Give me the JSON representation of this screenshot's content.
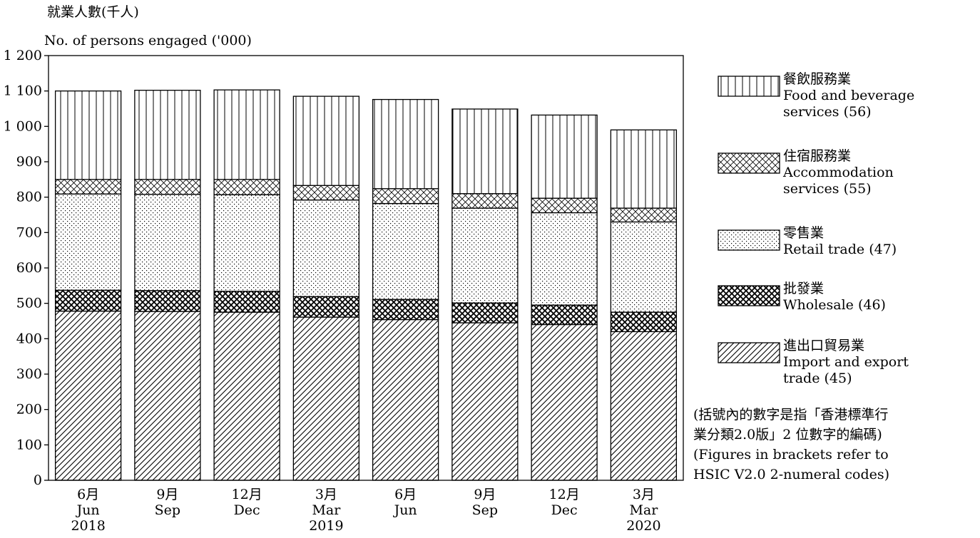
{
  "chart_data": {
    "type": "bar",
    "stacked": true,
    "ylabel_zh": "就業人數(千人)",
    "ylabel_en": "No. of persons engaged ('000)",
    "ylim": [
      0,
      1200
    ],
    "yticks": [
      0,
      100,
      200,
      300,
      400,
      500,
      600,
      700,
      800,
      900,
      1000,
      1100,
      1200
    ],
    "ytick_labels": [
      "0",
      "100",
      "200",
      "300",
      "400",
      "500",
      "600",
      "700",
      "800",
      "900",
      "1 000",
      "1 100",
      "1 200"
    ],
    "categories": [
      {
        "zh": "6月",
        "en": "Jun",
        "year": "2018"
      },
      {
        "zh": "9月",
        "en": "Sep",
        "year": ""
      },
      {
        "zh": "12月",
        "en": "Dec",
        "year": ""
      },
      {
        "zh": "3月",
        "en": "Mar",
        "year": "2019"
      },
      {
        "zh": "6月",
        "en": "Jun",
        "year": ""
      },
      {
        "zh": "9月",
        "en": "Sep",
        "year": ""
      },
      {
        "zh": "12月",
        "en": "Dec",
        "year": ""
      },
      {
        "zh": "3月",
        "en": "Mar",
        "year": "2020"
      }
    ],
    "series": [
      {
        "name_zh": "進出口貿易業",
        "name_en_lines": [
          "Import and export",
          "trade (45)"
        ],
        "pattern": "diagonal",
        "values": [
          478,
          477,
          475,
          461,
          454,
          445,
          440,
          420
        ]
      },
      {
        "name_zh": "批發業",
        "name_en_lines": [
          "Wholesale (46)"
        ],
        "pattern": "crosshatch-dense",
        "values": [
          59,
          59,
          59,
          58,
          57,
          56,
          55,
          55
        ]
      },
      {
        "name_zh": "零售業",
        "name_en_lines": [
          "Retail trade (47)"
        ],
        "pattern": "dots",
        "values": [
          272,
          272,
          273,
          273,
          271,
          268,
          261,
          255
        ]
      },
      {
        "name_zh": "住宿服務業",
        "name_en_lines": [
          "Accommodation",
          "services (55)"
        ],
        "pattern": "crosshatch-light",
        "values": [
          41,
          42,
          43,
          41,
          42,
          41,
          41,
          39
        ]
      },
      {
        "name_zh": "餐飲服務業",
        "name_en_lines": [
          "Food and beverage",
          "services (56)"
        ],
        "pattern": "vertical",
        "values": [
          250,
          252,
          253,
          252,
          252,
          239,
          235,
          221
        ]
      }
    ]
  },
  "note": {
    "zh_lines": [
      "(括號內的數字是指「香港標準行",
      "業分類2.0版」2 位數字的編碼)"
    ],
    "en_lines": [
      "(Figures in brackets refer to",
      "HSIC V2.0 2-numeral codes)"
    ]
  }
}
